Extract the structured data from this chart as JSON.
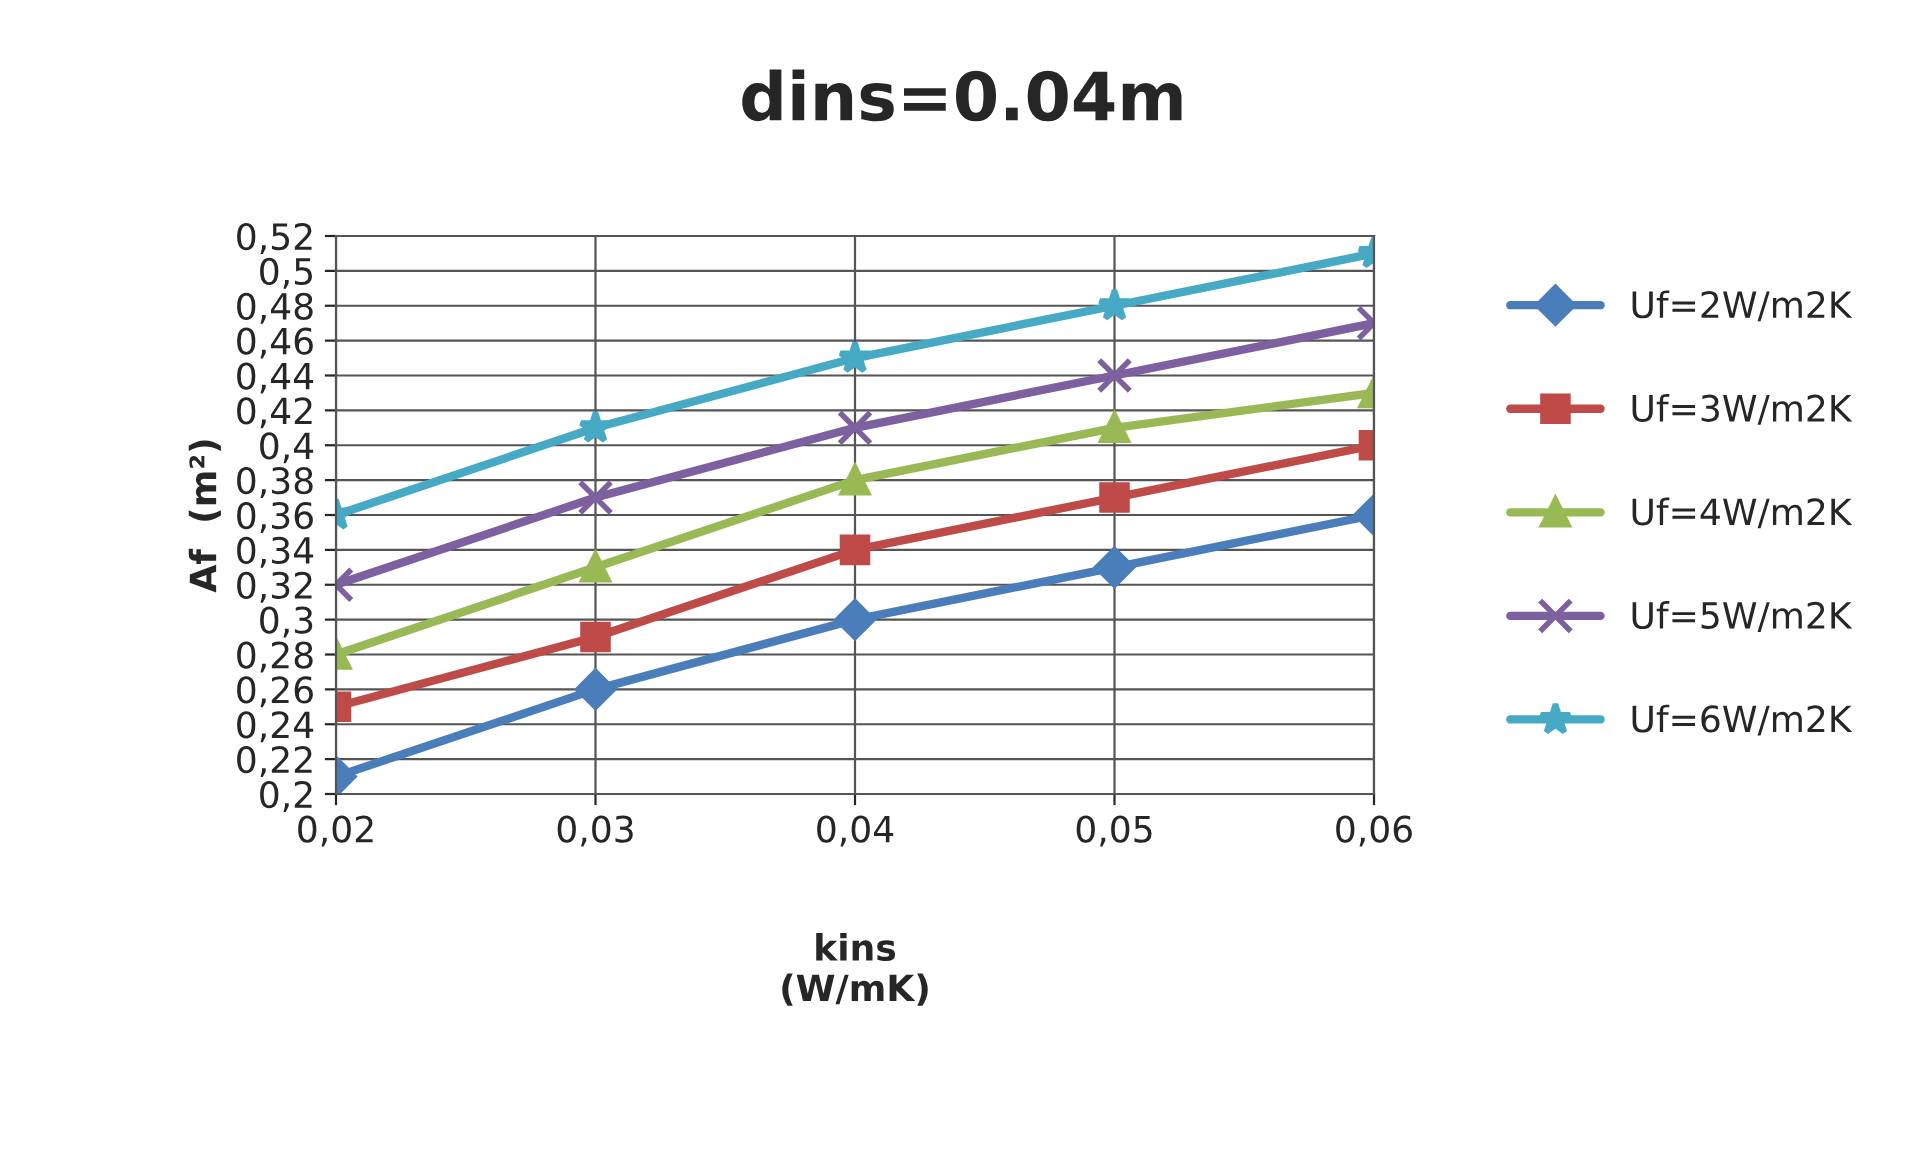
{
  "chart_data": {
    "type": "line",
    "title": "dins=0.04m",
    "xlabel": "kins\n(W/mK)",
    "ylabel": "Af  (m²)",
    "categories": [
      "0,02",
      "0,03",
      "0,04",
      "0,05",
      "0,06"
    ],
    "series": [
      {
        "name": "Uf=2W/m2K",
        "color": "#4a7ebb",
        "marker": "diamond",
        "values": [
          0.21,
          0.26,
          0.3,
          0.33,
          0.36
        ]
      },
      {
        "name": "Uf=3W/m2K",
        "color": "#be4b48",
        "marker": "square",
        "values": [
          0.25,
          0.29,
          0.34,
          0.37,
          0.4
        ]
      },
      {
        "name": "Uf=4W/m2K",
        "color": "#98b954",
        "marker": "triangle",
        "values": [
          0.28,
          0.33,
          0.38,
          0.41,
          0.43
        ]
      },
      {
        "name": "Uf=5W/m2K",
        "color": "#7d60a0",
        "marker": "cross",
        "values": [
          0.32,
          0.37,
          0.41,
          0.44,
          0.47
        ]
      },
      {
        "name": "Uf=6W/m2K",
        "color": "#46aac5",
        "marker": "star",
        "values": [
          0.36,
          0.41,
          0.45,
          0.48,
          0.51
        ]
      }
    ],
    "ylim": [
      0.2,
      0.52
    ],
    "yticks": [
      {
        "value": 0.2,
        "label": "0,2"
      },
      {
        "value": 0.22,
        "label": "0,22"
      },
      {
        "value": 0.24,
        "label": "0,24"
      },
      {
        "value": 0.26,
        "label": "0,26"
      },
      {
        "value": 0.28,
        "label": "0,28"
      },
      {
        "value": 0.3,
        "label": "0,3"
      },
      {
        "value": 0.32,
        "label": "0,32"
      },
      {
        "value": 0.34,
        "label": "0,34"
      },
      {
        "value": 0.36,
        "label": "0,36"
      },
      {
        "value": 0.38,
        "label": "0,38"
      },
      {
        "value": 0.4,
        "label": "0,4"
      },
      {
        "value": 0.42,
        "label": "0,42"
      },
      {
        "value": 0.44,
        "label": "0,44"
      },
      {
        "value": 0.46,
        "label": "0,46"
      },
      {
        "value": 0.48,
        "label": "0,48"
      },
      {
        "value": 0.5,
        "label": "0,5"
      },
      {
        "value": 0.52,
        "label": "0,52"
      }
    ],
    "grid": true,
    "legend": "right",
    "line_style": "solid"
  }
}
